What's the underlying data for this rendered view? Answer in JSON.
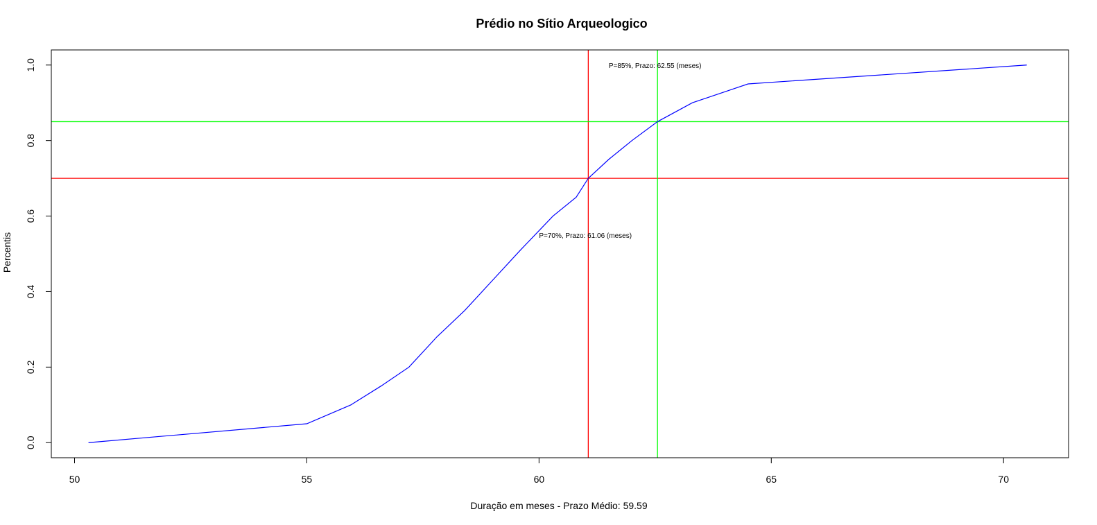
{
  "chart_data": {
    "type": "line",
    "title": "Prédio no Sítio Arqueologico",
    "xlabel": "Duração em meses - Prazo Médio: 59.59",
    "ylabel": "Percentis",
    "xlim": [
      49.5,
      71.4
    ],
    "ylim": [
      -0.04,
      1.04
    ],
    "xticks": [
      50,
      55,
      60,
      65,
      70
    ],
    "yticks": [
      0.0,
      0.2,
      0.4,
      0.6,
      0.8,
      1.0
    ],
    "xtick_labels": [
      "50",
      "55",
      "60",
      "65",
      "70"
    ],
    "ytick_labels": [
      "0.0",
      "0.2",
      "0.4",
      "0.6",
      "0.8",
      "1.0"
    ],
    "grid": false,
    "series": [
      {
        "color": "#0000ff",
        "x": [
          50.3,
          55.0,
          55.95,
          56.6,
          57.2,
          57.8,
          58.4,
          59.0,
          59.6,
          60.3,
          60.8,
          61.06,
          61.5,
          62.0,
          62.55,
          63.3,
          64.5,
          70.5
        ],
        "y": [
          0.0,
          0.05,
          0.1,
          0.15,
          0.2,
          0.28,
          0.35,
          0.43,
          0.51,
          0.6,
          0.65,
          0.7,
          0.75,
          0.8,
          0.85,
          0.9,
          0.95,
          1.0
        ]
      }
    ],
    "reference_lines": [
      {
        "orientation": "vertical",
        "value": 61.06,
        "color": "#ff0000"
      },
      {
        "orientation": "horizontal",
        "value": 0.7,
        "color": "#ff0000"
      },
      {
        "orientation": "vertical",
        "value": 62.55,
        "color": "#00ff00"
      },
      {
        "orientation": "horizontal",
        "value": 0.85,
        "color": "#00ff00"
      }
    ],
    "annotations": [
      {
        "text": "P=70%, Prazo: 61.06 (meses)",
        "x": 60.0,
        "y": 0.55
      },
      {
        "text": "P=85%, Prazo: 62.55 (meses)",
        "x": 61.5,
        "y": 1.0
      }
    ]
  }
}
